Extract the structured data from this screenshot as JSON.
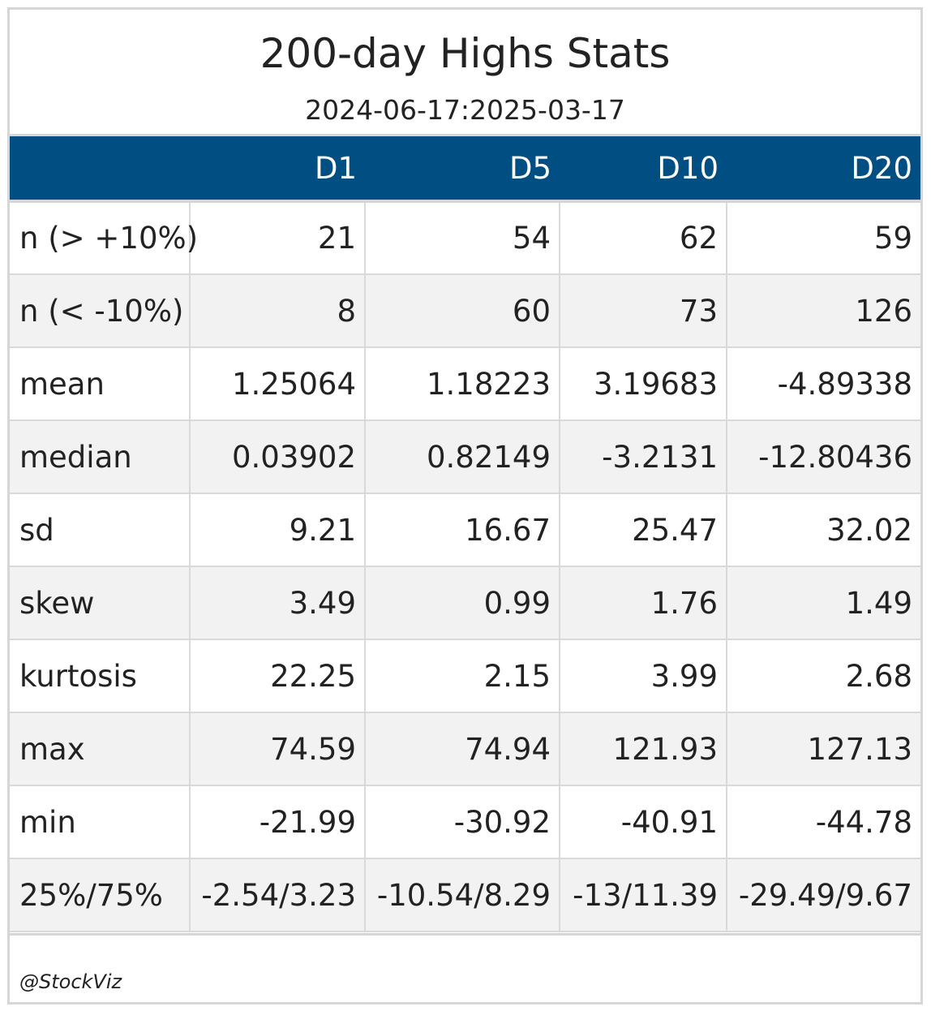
{
  "title": "200-day Highs Stats",
  "subtitle": "2024-06-17:2025-03-17",
  "table": {
    "columns": [
      "",
      "D1",
      "D5",
      "D10",
      "D20"
    ],
    "rows": [
      {
        "label": "n (> +10%)",
        "values": [
          "21",
          "54",
          "62",
          "59"
        ]
      },
      {
        "label": "n (< -10%)",
        "values": [
          "8",
          "60",
          "73",
          "126"
        ]
      },
      {
        "label": "mean",
        "values": [
          "1.25064",
          "1.18223",
          "3.19683",
          "-4.89338"
        ]
      },
      {
        "label": "median",
        "values": [
          "0.03902",
          "0.82149",
          "-3.2131",
          "-12.80436"
        ]
      },
      {
        "label": "sd",
        "values": [
          "9.21",
          "16.67",
          "25.47",
          "32.02"
        ]
      },
      {
        "label": "skew",
        "values": [
          "3.49",
          "0.99",
          "1.76",
          "1.49"
        ]
      },
      {
        "label": "kurtosis",
        "values": [
          "22.25",
          "2.15",
          "3.99",
          "2.68"
        ]
      },
      {
        "label": "max",
        "values": [
          "74.59",
          "74.94",
          "121.93",
          "127.13"
        ]
      },
      {
        "label": "min",
        "values": [
          "-21.99",
          "-30.92",
          "-40.91",
          "-44.78"
        ]
      },
      {
        "label": "25%/75%",
        "values": [
          "-2.54/3.23",
          "-10.54/8.29",
          "-13/11.39",
          "-29.49/9.67"
        ]
      }
    ]
  },
  "footer": "@StockViz",
  "colors": {
    "header_bg": "#004e82",
    "header_text": "#ffffff",
    "row_alt": "#f2f2f2",
    "border": "#d6d6d6"
  }
}
